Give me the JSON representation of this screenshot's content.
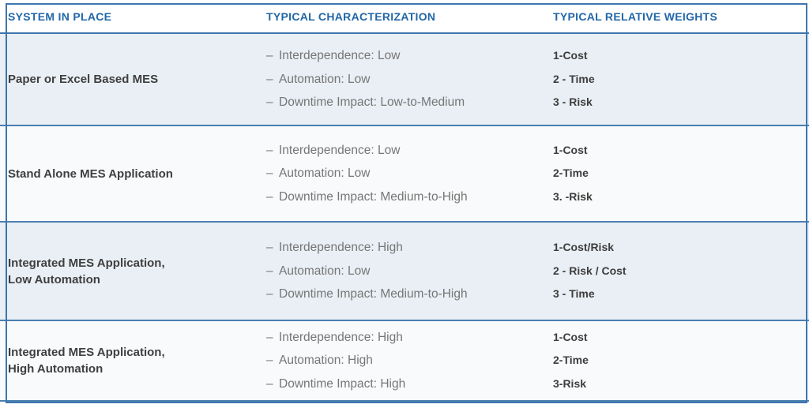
{
  "table": {
    "bullet": "–",
    "columns": [
      {
        "label": "SYSTEM IN PLACE"
      },
      {
        "label": "TYPICAL CHARACTERIZATION"
      },
      {
        "label": "TYPICAL RELATIVE WEIGHTS"
      }
    ],
    "rows": [
      {
        "system": "Paper or Excel Based MES",
        "characterization": [
          "Interdependence: Low",
          "Automation: Low",
          "Downtime Impact: Low-to-Medium"
        ],
        "weights": [
          "1-Cost",
          "2 - Time",
          "3 - Risk"
        ]
      },
      {
        "system": "Stand Alone MES Application",
        "characterization": [
          "Interdependence: Low",
          "Automation: Low",
          "Downtime Impact: Medium-to-High"
        ],
        "weights": [
          "1-Cost",
          "2-Time",
          "3. -Risk"
        ]
      },
      {
        "system": "Integrated MES Application,\nLow Automation",
        "characterization": [
          "Interdependence: High",
          "Automation: Low",
          "Downtime Impact: Medium-to-High"
        ],
        "weights": [
          "1-Cost/Risk",
          "2 - Risk / Cost",
          "3 - Time"
        ]
      },
      {
        "system": "Integrated MES Application,\nHigh Automation",
        "characterization": [
          "Interdependence: High",
          "Automation: High",
          "Downtime Impact: High"
        ],
        "weights": [
          "1-Cost",
          "2-Time",
          "3-Risk"
        ]
      }
    ],
    "colors": {
      "border_blue": "#3d76ad",
      "divider_blue": "#4a7fb2",
      "header_text": "#2267a7",
      "row_alt_blue": "#e9eff5",
      "row_alt_white": "#f8fafb",
      "body_text_dark": "#3d3d3d",
      "body_text_gray": "#767676"
    }
  }
}
